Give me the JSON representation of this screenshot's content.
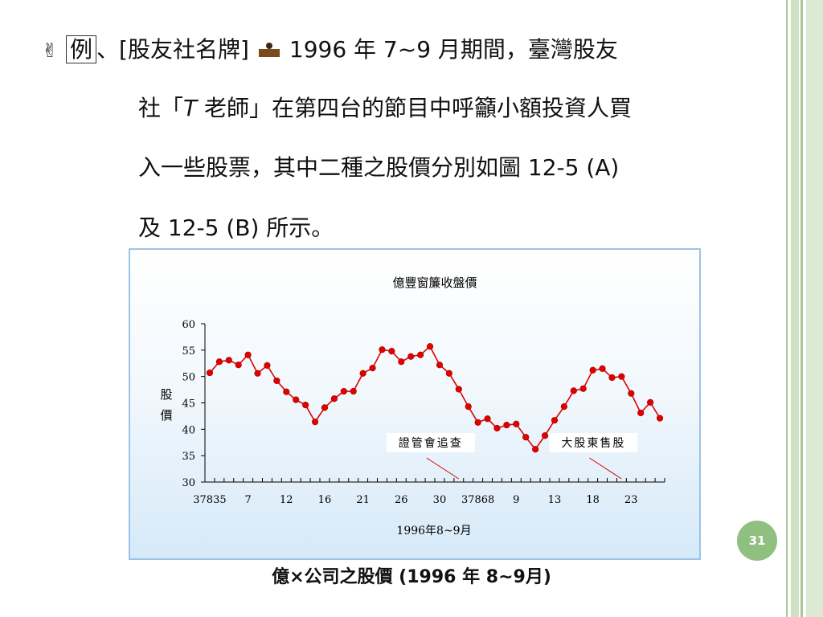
{
  "slide": {
    "bullet": "✌",
    "example_label": "例",
    "line1_a": "、[股友社名牌]",
    "line1_b": "1996 年 7~9 月期間，臺灣股友",
    "line2_a": "社「",
    "line2_ital": "T",
    "line2_b": " 老師」在第四台的節目中呼籲小額投資人買",
    "line3": "入一些股票，其中二種之股價分別如圖 12-5 (A)",
    "line4": "及 12-5 (B) 所示。",
    "page_number": "31",
    "caption": "億×公司之股價 (1996 年 8~9月)"
  },
  "colors": {
    "line": "#dd0000",
    "marker": "#e00000",
    "axis": "#000000",
    "frame": "#9cc3e6",
    "badge": "#90c080"
  },
  "chart_data": {
    "type": "line",
    "title": "億豐窗簾收盤價",
    "xlabel": "1996年8~9月",
    "ylabel": "股價",
    "ylim": [
      30,
      60
    ],
    "yticks": [
      30,
      35,
      40,
      45,
      50,
      55,
      60
    ],
    "xticklabels": [
      {
        "index": 0,
        "label": "37835"
      },
      {
        "index": 4,
        "label": "7"
      },
      {
        "index": 8,
        "label": "12"
      },
      {
        "index": 12,
        "label": "16"
      },
      {
        "index": 16,
        "label": "21"
      },
      {
        "index": 20,
        "label": "26"
      },
      {
        "index": 24,
        "label": "30"
      },
      {
        "index": 28,
        "label": "37868"
      },
      {
        "index": 32,
        "label": "9"
      },
      {
        "index": 36,
        "label": "13"
      },
      {
        "index": 40,
        "label": "18"
      },
      {
        "index": 44,
        "label": "23"
      }
    ],
    "x_count": 48,
    "values": [
      50.7,
      52.8,
      53.1,
      52.2,
      54.1,
      50.6,
      52.1,
      49.2,
      47.1,
      45.6,
      44.6,
      41.4,
      44.1,
      45.8,
      47.2,
      47.2,
      50.6,
      51.6,
      55.1,
      54.8,
      52.8,
      53.8,
      54.1,
      55.7,
      52.2,
      50.6,
      47.6,
      44.3,
      41.3,
      42.0,
      40.2,
      40.8,
      41.0,
      38.5,
      36.2,
      38.8,
      41.7,
      44.3,
      47.3,
      47.7,
      51.2,
      51.5,
      49.8,
      50.0,
      46.8,
      43.1,
      45.1,
      42.1
    ],
    "grid": false,
    "legend": "none",
    "annotations": [
      {
        "text": "證管會追查",
        "points_to_index": 26
      },
      {
        "text": "大股東售股",
        "points_to_index": 43
      }
    ]
  }
}
